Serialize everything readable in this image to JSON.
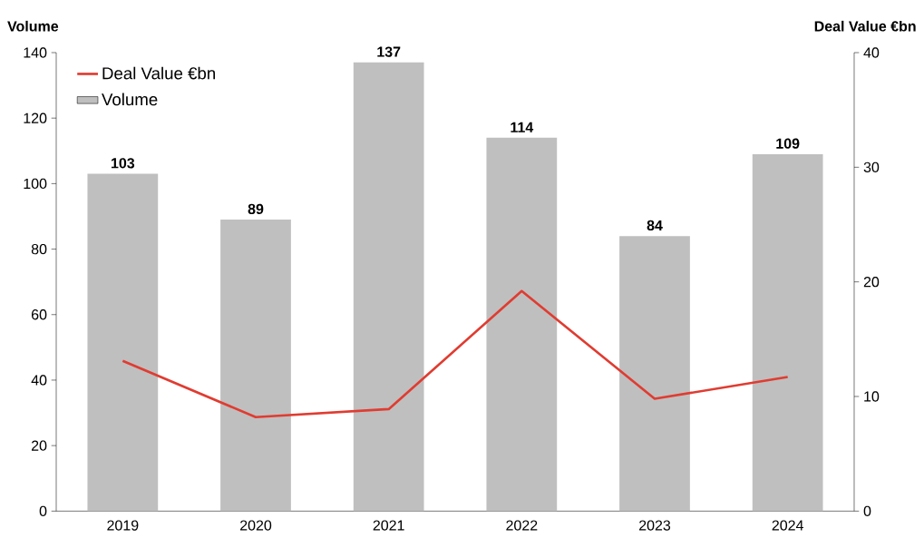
{
  "chart_data": {
    "type": "bar",
    "categories": [
      "2019",
      "2020",
      "2021",
      "2022",
      "2023",
      "2024"
    ],
    "ylabel": "Volume",
    "y2label": "Deal Value €bn",
    "series": [
      {
        "name": "Deal Value €bn",
        "type": "line",
        "axis": "y2",
        "color": "#e03c31",
        "values": [
          13.1,
          8.2,
          8.9,
          19.2,
          9.8,
          11.7
        ]
      },
      {
        "name": "Volume",
        "color": "#bfbfbf",
        "values": [
          103,
          89,
          137,
          114,
          84,
          109
        ],
        "value_labels": [
          "103",
          "89",
          "137",
          "114",
          "84",
          "109"
        ]
      }
    ],
    "ylim": [
      0,
      140
    ],
    "yticks": [
      0,
      20,
      40,
      60,
      80,
      100,
      120,
      140
    ],
    "y2lim": [
      0,
      40
    ],
    "y2ticks": [
      0,
      10,
      20,
      30,
      40
    ],
    "legend": "top left",
    "grid": false,
    "marker": "none",
    "line_style": "solid"
  }
}
